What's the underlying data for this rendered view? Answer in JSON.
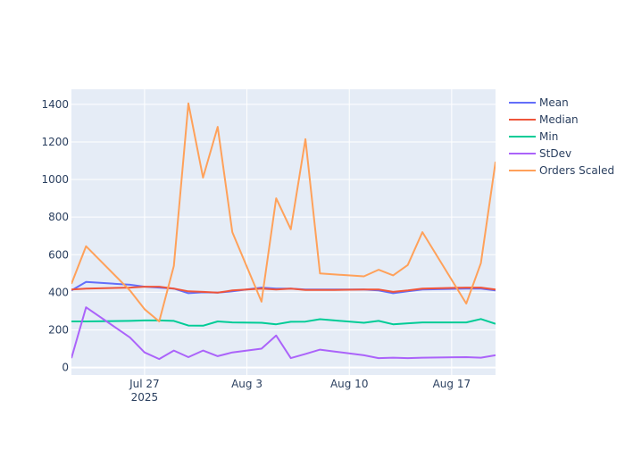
{
  "chart_data": {
    "type": "line",
    "title": "",
    "xlabel": "",
    "ylabel": "",
    "x_tick_labels": [
      {
        "date": "2025-07-27",
        "label": "Jul 27",
        "sublabel": "2025"
      },
      {
        "date": "2025-08-03",
        "label": "Aug 3",
        "sublabel": ""
      },
      {
        "date": "2025-08-10",
        "label": "Aug 10",
        "sublabel": ""
      },
      {
        "date": "2025-08-17",
        "label": "Aug 17",
        "sublabel": ""
      }
    ],
    "y_ticks": [
      0,
      200,
      400,
      600,
      800,
      1000,
      1200,
      1400
    ],
    "xlim": [
      "2025-07-22",
      "2025-08-20"
    ],
    "ylim": [
      -40,
      1480
    ],
    "grid": true,
    "legend_position": "top-right",
    "x": [
      "2025-07-22",
      "2025-07-23",
      "2025-07-26",
      "2025-07-27",
      "2025-07-28",
      "2025-07-29",
      "2025-07-30",
      "2025-07-31",
      "2025-08-01",
      "2025-08-02",
      "2025-08-04",
      "2025-08-05",
      "2025-08-06",
      "2025-08-07",
      "2025-08-08",
      "2025-08-09",
      "2025-08-11",
      "2025-08-12",
      "2025-08-13",
      "2025-08-14",
      "2025-08-15",
      "2025-08-18",
      "2025-08-19",
      "2025-08-20"
    ],
    "series": [
      {
        "name": "Mean",
        "color": "#636efa",
        "values": [
          410,
          455,
          440,
          430,
          425,
          420,
          395,
          400,
          398,
          405,
          425,
          420,
          420,
          415,
          415,
          415,
          415,
          410,
          395,
          405,
          415,
          420,
          420,
          410
        ]
      },
      {
        "name": "Median",
        "color": "#ef553b",
        "values": [
          415,
          420,
          425,
          430,
          430,
          420,
          405,
          402,
          398,
          410,
          420,
          415,
          420,
          412,
          412,
          412,
          415,
          415,
          402,
          410,
          420,
          425,
          425,
          415
        ]
      },
      {
        "name": "Min",
        "color": "#00cc96",
        "values": [
          245,
          245,
          248,
          250,
          250,
          248,
          223,
          222,
          245,
          240,
          238,
          230,
          243,
          244,
          257,
          250,
          238,
          248,
          230,
          235,
          240,
          240,
          258,
          232
        ]
      },
      {
        "name": "StDev",
        "color": "#ab63fa",
        "values": [
          50,
          320,
          160,
          80,
          45,
          90,
          55,
          90,
          60,
          80,
          100,
          170,
          50,
          72,
          95,
          85,
          65,
          50,
          52,
          50,
          52,
          55,
          52,
          65
        ]
      },
      {
        "name": "Orders Scaled",
        "color": "#ffa15a",
        "values": [
          445,
          645,
          410,
          310,
          245,
          540,
          1405,
          1010,
          1280,
          720,
          350,
          900,
          735,
          1215,
          500,
          495,
          485,
          520,
          490,
          545,
          720,
          340,
          555,
          1095
        ]
      }
    ]
  }
}
